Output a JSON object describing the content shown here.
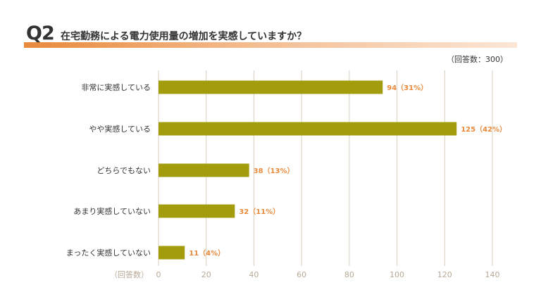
{
  "header": {
    "q_number": "Q2",
    "question": "在宅勤務による電力使用量の増加を実感していますか？",
    "respondents": "（回答数：300）"
  },
  "colors": {
    "bar": "#a39c0d",
    "value_label": "#e8893b",
    "grid": "#d8cdbf",
    "axis_text": "#b7a996",
    "title_band": "#e8893b"
  },
  "chart_data": {
    "type": "bar",
    "orientation": "horizontal",
    "categories": [
      "非常に実感している",
      "やや実感している",
      "どちらでもない",
      "あまり実感していない",
      "まったく実感していない"
    ],
    "values": [
      94,
      125,
      38,
      32,
      11
    ],
    "value_labels": [
      "94（31%）",
      "125（42%）",
      "38（13%）",
      "32（11%）",
      "11（4%）"
    ],
    "xlabel": "（回答数）",
    "xlim": [
      0,
      140
    ],
    "xticks": [
      0,
      20,
      40,
      60,
      80,
      100,
      120,
      140
    ],
    "grid": true,
    "legend": "none"
  }
}
